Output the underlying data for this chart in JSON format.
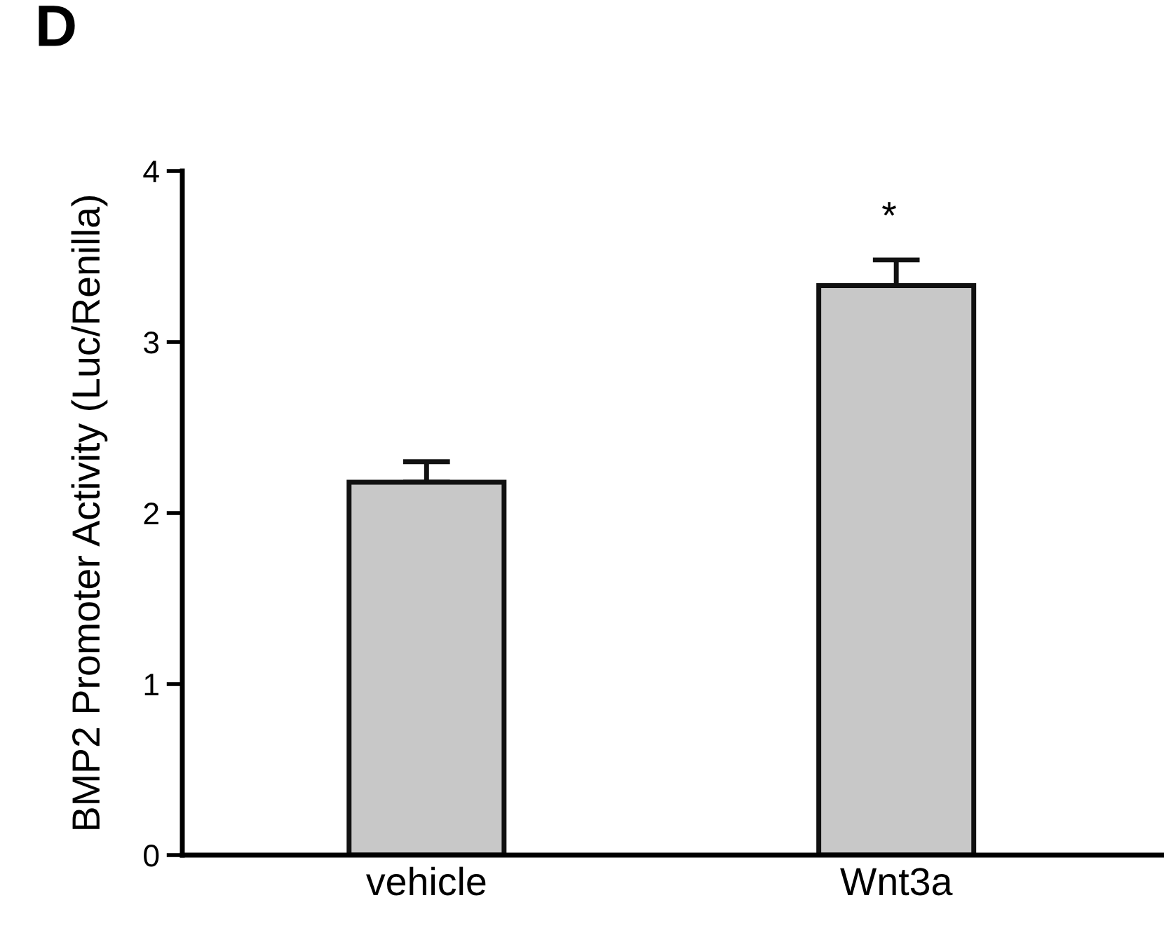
{
  "chart_data": {
    "type": "bar",
    "title": "D",
    "ylabel": "BMP2 Promoter Activity (Luc/Renilla)",
    "categories": [
      "vehicle",
      "Wnt3a"
    ],
    "values": [
      2.18,
      3.33
    ],
    "errors": [
      [
        2.18,
        2.3
      ],
      [
        3.33,
        3.48
      ]
    ],
    "color": "#c8c8c8",
    "ylim": [
      0,
      4
    ],
    "yticks": [
      0,
      1,
      2,
      3,
      4
    ],
    "grid": false,
    "legend": false,
    "annotations": [
      "*"
    ]
  }
}
